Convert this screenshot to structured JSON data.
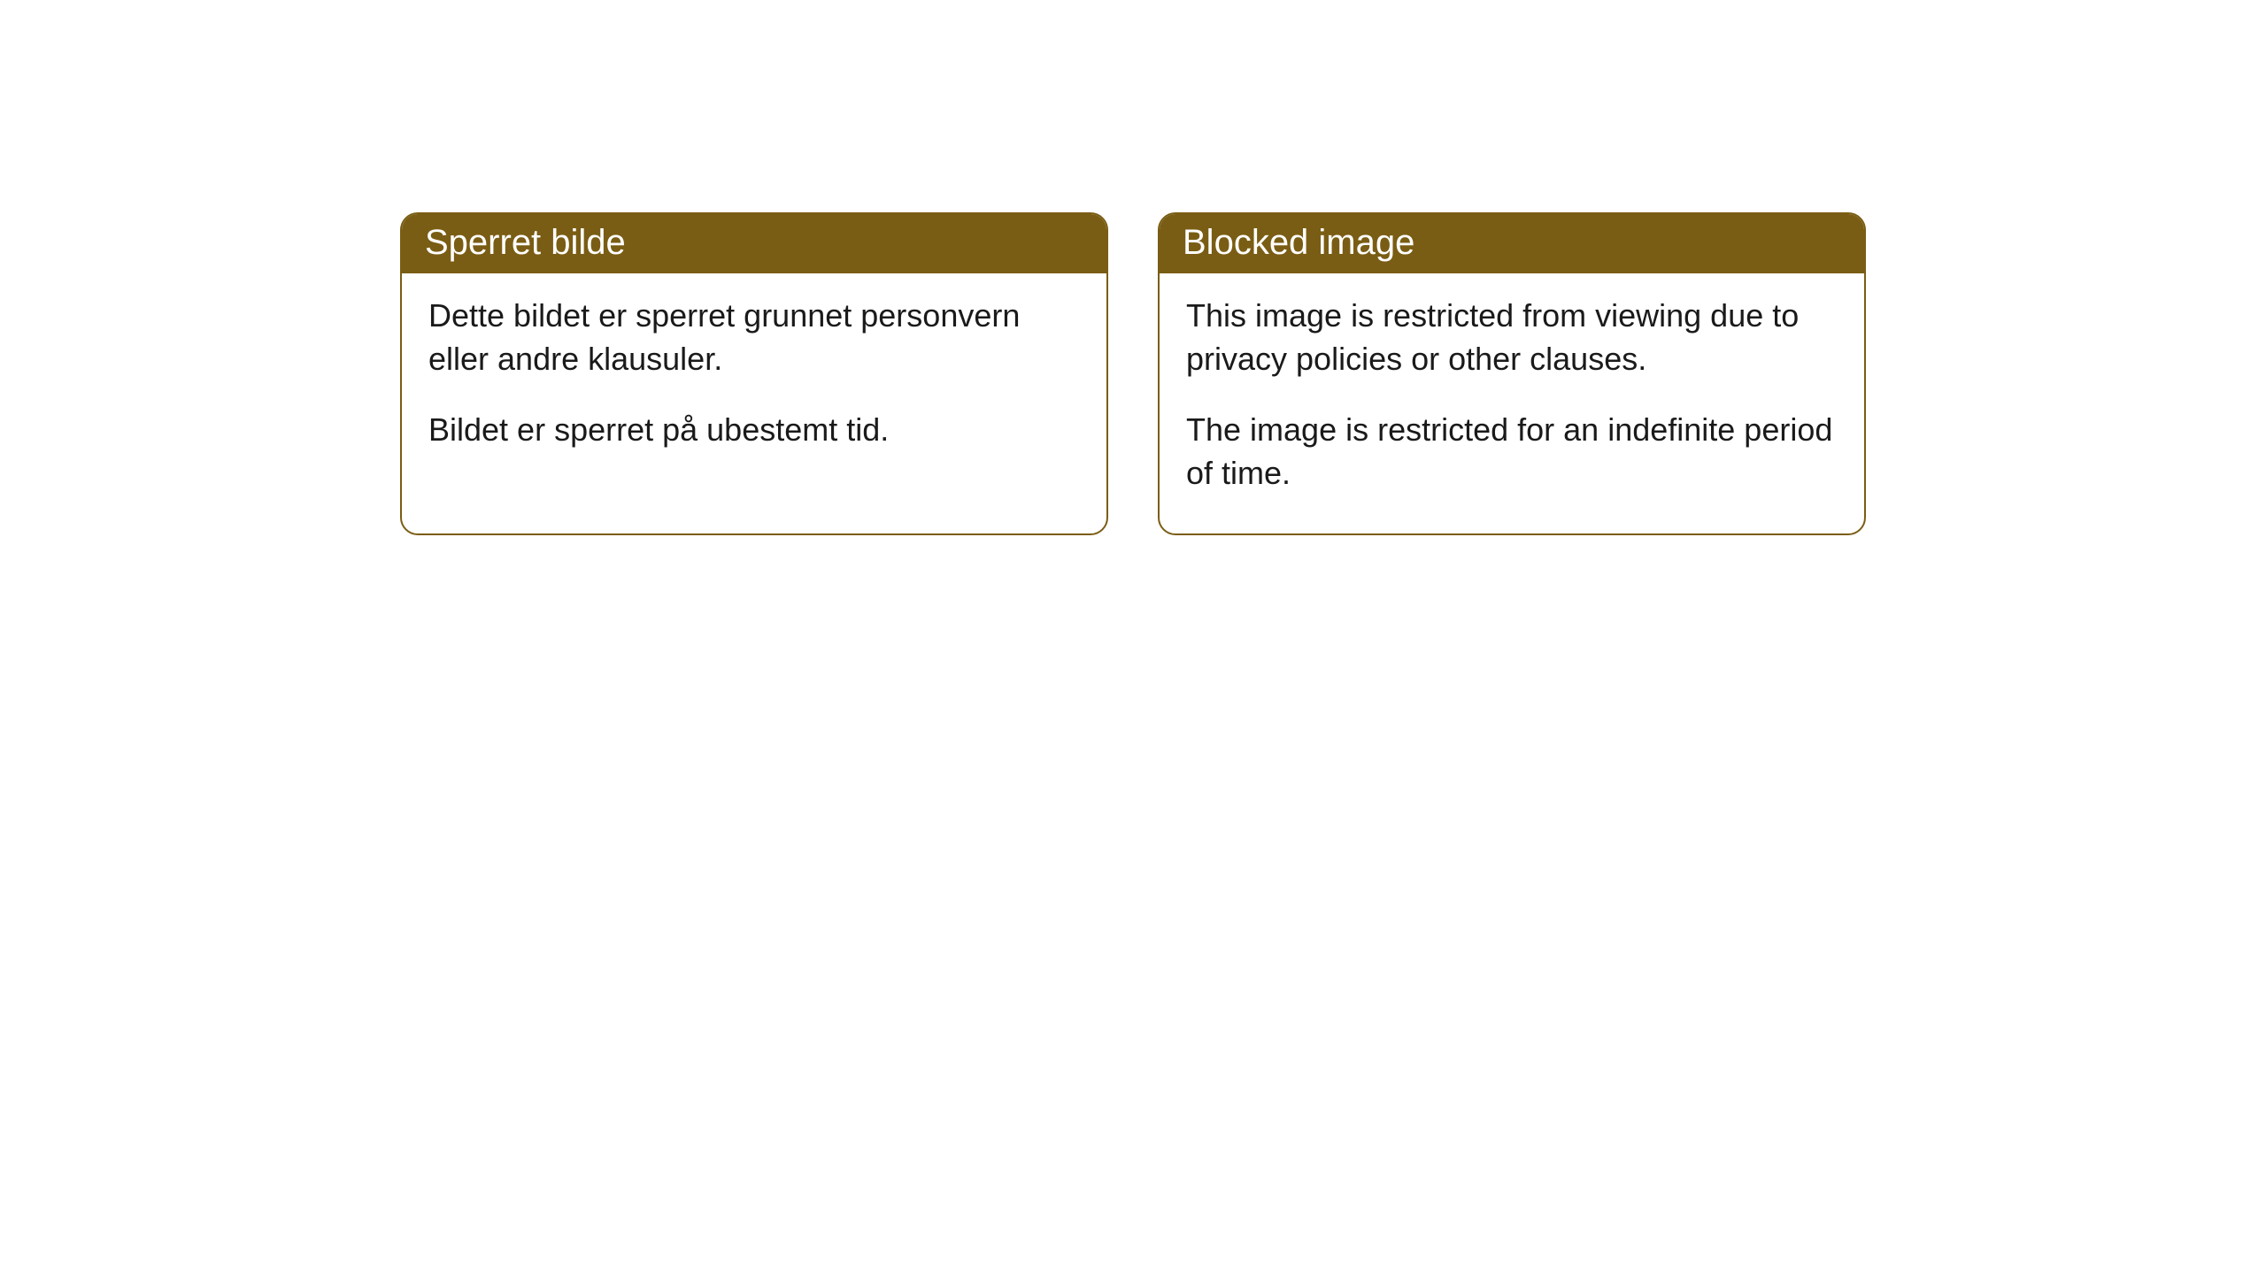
{
  "cards": [
    {
      "title": "Sperret bilde",
      "paragraph1": "Dette bildet er sperret grunnet personvern eller andre klausuler.",
      "paragraph2": "Bildet er sperret på ubestemt tid."
    },
    {
      "title": "Blocked image",
      "paragraph1": "This image is restricted from viewing due to privacy policies or other clauses.",
      "paragraph2": "The image is restricted for an indefinite period of time."
    }
  ],
  "styling": {
    "header_background": "#7a5d14",
    "header_text_color": "#ffffff",
    "border_color": "#7a5d14",
    "border_radius": 20,
    "body_background": "#ffffff",
    "body_text_color": "#1a1a1a",
    "title_fontsize": 40,
    "body_fontsize": 36
  }
}
